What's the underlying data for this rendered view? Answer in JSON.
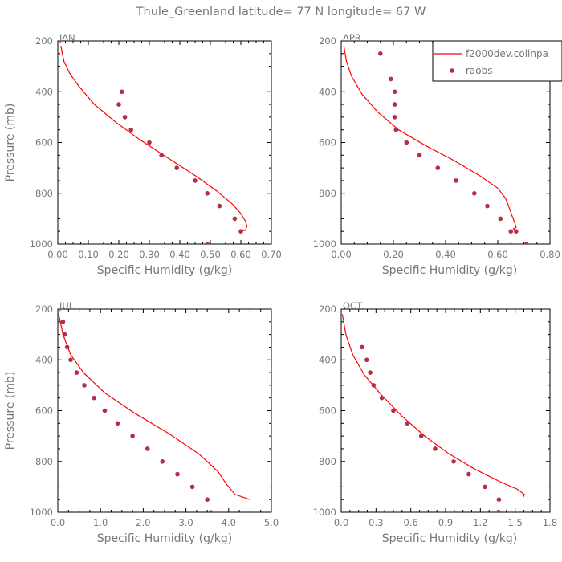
{
  "title": "Thule_Greenland  latitude= 77 N longitude= 67 W",
  "colors": {
    "model_line": "#ff0000",
    "obs_marker": "#b0304a",
    "axis": "#000000",
    "text": "#777777"
  },
  "legend": {
    "placement": "top-right of APR panel",
    "line_label": "f2000dev.colinpa",
    "marker_label": "raobs"
  },
  "chart_data": [
    {
      "type": "line",
      "panel": "JAN",
      "xlabel": "Specific Humidity (g/kg)",
      "ylabel": "Pressure (mb)",
      "xlim": [
        0,
        0.7
      ],
      "ylim": [
        1000,
        200
      ],
      "xticks": [
        "0.00",
        "0.10",
        "0.20",
        "0.30",
        "0.40",
        "0.50",
        "0.60",
        "0.70"
      ],
      "yticks": [
        "200",
        "400",
        "600",
        "800",
        "1000"
      ],
      "series": [
        {
          "name": "f2000dev.colinpa",
          "style": "line",
          "x": [
            0.01,
            0.02,
            0.04,
            0.07,
            0.12,
            0.19,
            0.27,
            0.36,
            0.45,
            0.52,
            0.57,
            0.6,
            0.615,
            0.62,
            0.615,
            0.6
          ],
          "y": [
            220,
            280,
            330,
            380,
            450,
            520,
            590,
            660,
            730,
            790,
            840,
            880,
            910,
            930,
            945,
            950
          ]
        },
        {
          "name": "raobs",
          "style": "marker",
          "x": [
            0.21,
            0.2,
            0.22,
            0.24,
            0.3,
            0.34,
            0.39,
            0.45,
            0.49,
            0.53,
            0.58,
            0.6,
            0.49
          ],
          "y": [
            400,
            450,
            500,
            550,
            600,
            650,
            700,
            750,
            800,
            850,
            900,
            950,
            1000
          ]
        }
      ]
    },
    {
      "type": "line",
      "panel": "APR",
      "xlabel": "Specific Humidity (g/kg)",
      "ylabel": "",
      "xlim": [
        0,
        0.8
      ],
      "ylim": [
        1000,
        200
      ],
      "xticks": [
        "0.00",
        "0.20",
        "0.40",
        "0.60",
        "0.80"
      ],
      "yticks": [
        "200",
        "400",
        "600",
        "800",
        "1000"
      ],
      "series": [
        {
          "name": "f2000dev.colinpa",
          "style": "line",
          "x": [
            0.01,
            0.02,
            0.04,
            0.08,
            0.14,
            0.22,
            0.32,
            0.43,
            0.53,
            0.6,
            0.63,
            0.645,
            0.655,
            0.665,
            0.67,
            0.66,
            0.665
          ],
          "y": [
            220,
            280,
            340,
            410,
            480,
            550,
            610,
            670,
            730,
            780,
            820,
            860,
            890,
            915,
            935,
            940,
            945
          ]
        },
        {
          "name": "raobs",
          "style": "marker",
          "x": [
            0.15,
            0.19,
            0.205,
            0.205,
            0.205,
            0.21,
            0.25,
            0.3,
            0.37,
            0.44,
            0.51,
            0.56,
            0.61,
            0.65,
            0.71,
            0.67
          ],
          "y": [
            250,
            350,
            400,
            450,
            500,
            550,
            600,
            650,
            700,
            750,
            800,
            850,
            900,
            950,
            1000,
            950
          ]
        }
      ]
    },
    {
      "type": "line",
      "panel": "JUL",
      "xlabel": "Specific Humidity (g/kg)",
      "ylabel": "Pressure (mb)",
      "xlim": [
        0,
        5.0
      ],
      "ylim": [
        1000,
        200
      ],
      "xticks": [
        "0.0",
        "1.0",
        "2.0",
        "3.0",
        "4.0",
        "5.0"
      ],
      "yticks": [
        "200",
        "400",
        "600",
        "800",
        "1000"
      ],
      "series": [
        {
          "name": "f2000dev.colinpa",
          "style": "line",
          "x": [
            0.02,
            0.12,
            0.3,
            0.6,
            1.1,
            1.8,
            2.6,
            3.3,
            3.75,
            3.95,
            4.15,
            4.5
          ],
          "y": [
            220,
            300,
            380,
            450,
            530,
            610,
            690,
            770,
            840,
            890,
            930,
            950
          ]
        },
        {
          "name": "raobs",
          "style": "marker",
          "x": [
            0.12,
            0.16,
            0.22,
            0.3,
            0.44,
            0.62,
            0.85,
            1.1,
            1.4,
            1.75,
            2.1,
            2.45,
            2.8,
            3.15,
            3.5,
            3.58
          ],
          "y": [
            250,
            300,
            350,
            400,
            450,
            500,
            550,
            600,
            650,
            700,
            750,
            800,
            850,
            900,
            950,
            1000
          ]
        }
      ]
    },
    {
      "type": "line",
      "panel": "OCT",
      "xlabel": "Specific Humidity (g/kg)",
      "ylabel": "",
      "xlim": [
        0,
        1.8
      ],
      "ylim": [
        1000,
        200
      ],
      "xticks": [
        "0.0",
        "0.3",
        "0.6",
        "0.9",
        "1.2",
        "1.5",
        "1.8"
      ],
      "yticks": [
        "200",
        "400",
        "600",
        "800",
        "1000"
      ],
      "series": [
        {
          "name": "f2000dev.colinpa",
          "style": "line",
          "x": [
            0.01,
            0.04,
            0.1,
            0.2,
            0.35,
            0.52,
            0.72,
            0.93,
            1.15,
            1.37,
            1.52,
            1.58,
            1.57
          ],
          "y": [
            220,
            300,
            380,
            460,
            540,
            620,
            700,
            770,
            830,
            880,
            910,
            930,
            940
          ]
        },
        {
          "name": "raobs",
          "style": "marker",
          "x": [
            0.18,
            0.22,
            0.25,
            0.28,
            0.35,
            0.45,
            0.57,
            0.69,
            0.81,
            0.97,
            1.1,
            1.24,
            1.36,
            1.36
          ],
          "y": [
            350,
            400,
            450,
            500,
            550,
            600,
            650,
            700,
            750,
            800,
            850,
            900,
            950,
            1000
          ]
        }
      ]
    }
  ]
}
